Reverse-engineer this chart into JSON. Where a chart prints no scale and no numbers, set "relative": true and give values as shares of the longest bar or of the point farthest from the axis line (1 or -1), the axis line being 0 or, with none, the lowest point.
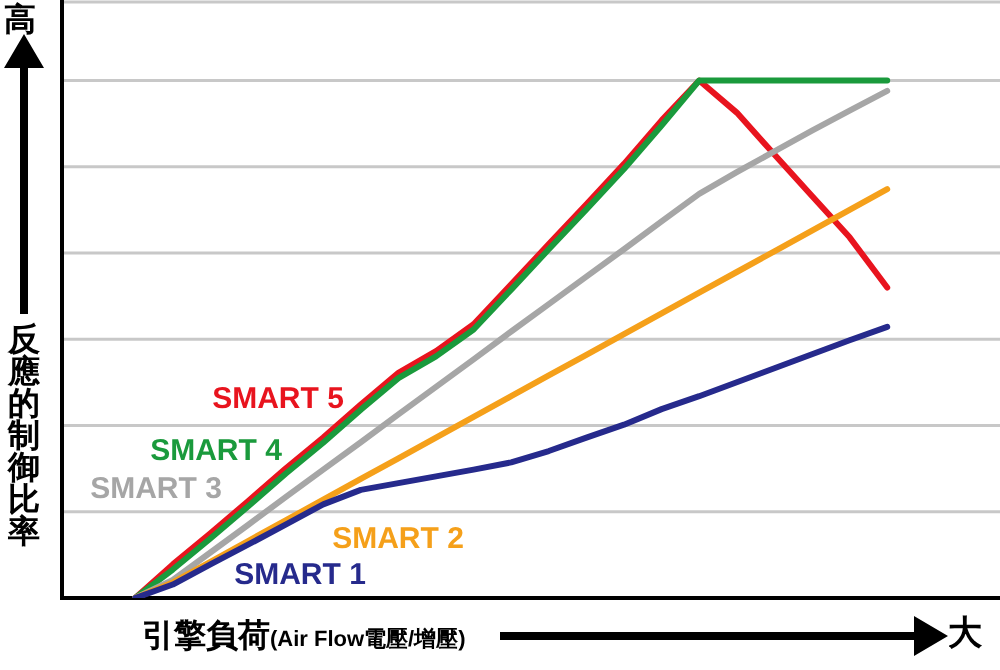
{
  "chart_data": {
    "type": "line",
    "relative": true,
    "grid": "y",
    "legend": false,
    "marker": "none",
    "line_style": "solid",
    "xlabel": "引擎負荷(Air Flow電壓/增壓)",
    "ylabel": "反應的制御比率",
    "annotations": [
      "高",
      "大"
    ],
    "categories": [
      null,
      null,
      null,
      null,
      null,
      null,
      null,
      null,
      null,
      null,
      null,
      null,
      null,
      null,
      null,
      null,
      null,
      null,
      null,
      null,
      null,
      null,
      null,
      null,
      null,
      null
    ],
    "series": [
      {
        "name": "SMART 1",
        "color": "#262a8c",
        "values": [
          null,
          null,
          0,
          0.026,
          0.065,
          0.103,
          0.142,
          0.181,
          0.209,
          0.222,
          0.235,
          0.248,
          0.262,
          0.284,
          0.31,
          0.335,
          0.365,
          0.39,
          0.417,
          0.444,
          0.471,
          0.498,
          0.524,
          null,
          null,
          null
        ]
      },
      {
        "name": "SMART 2",
        "color": "#f5a01a",
        "values": [
          null,
          null,
          0,
          0.03,
          0.07,
          0.11,
          0.15,
          0.19,
          0.23,
          0.27,
          0.31,
          0.35,
          0.39,
          0.43,
          0.47,
          0.51,
          0.55,
          0.59,
          0.63,
          0.67,
          0.71,
          0.75,
          0.79,
          null,
          null,
          null
        ]
      },
      {
        "name": "SMART 3",
        "color": "#a6a6a6",
        "values": [
          null,
          null,
          0,
          0.035,
          0.088,
          0.141,
          0.195,
          0.248,
          0.301,
          0.355,
          0.408,
          0.461,
          0.515,
          0.568,
          0.621,
          0.674,
          0.728,
          0.781,
          0.823,
          0.863,
          0.903,
          0.942,
          0.98,
          null,
          null,
          null
        ]
      },
      {
        "name": "SMART 4",
        "color": "#1a9a3c",
        "values": [
          null,
          null,
          0,
          0.055,
          0.115,
          0.177,
          0.24,
          0.3,
          0.364,
          0.425,
          0.467,
          0.519,
          0.596,
          0.674,
          0.751,
          0.829,
          0.913,
          1,
          1,
          1,
          1,
          1,
          1,
          null,
          null,
          null
        ]
      },
      {
        "name": "SMART 5",
        "color": "#e8141e",
        "values": [
          null,
          null,
          0,
          0.065,
          0.125,
          0.187,
          0.25,
          0.31,
          0.374,
          0.435,
          0.477,
          0.529,
          0.606,
          0.684,
          0.761,
          0.839,
          0.923,
          1,
          0.938,
          0.857,
          0.777,
          0.697,
          0.6,
          null,
          null,
          null
        ]
      }
    ]
  }
}
